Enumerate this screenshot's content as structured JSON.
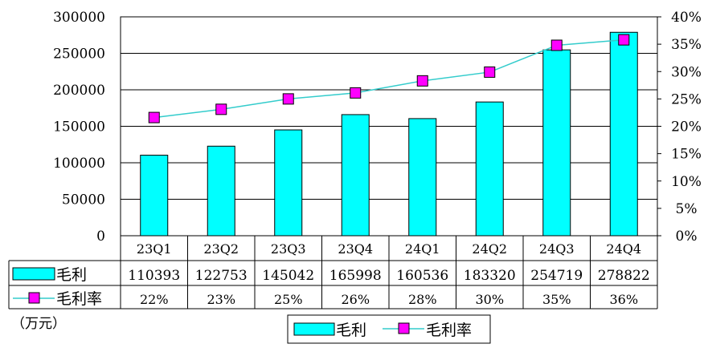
{
  "chart_data": {
    "type": "bar",
    "categories": [
      "23Q1",
      "23Q2",
      "23Q3",
      "23Q4",
      "24Q1",
      "24Q2",
      "24Q3",
      "24Q4"
    ],
    "series": [
      {
        "name": "毛利",
        "type": "bar",
        "axis": "left",
        "values": [
          110393,
          122753,
          145042,
          165998,
          160536,
          183320,
          254719,
          278822
        ],
        "color": "#00FFFF"
      },
      {
        "name": "毛利率",
        "type": "line",
        "axis": "right",
        "values": [
          21.6,
          23.1,
          25.0,
          26.1,
          28.3,
          29.9,
          34.8,
          35.8
        ],
        "table_labels": [
          "22%",
          "23%",
          "25%",
          "26%",
          "28%",
          "30%",
          "35%",
          "36%"
        ],
        "color": "#FF00FF",
        "line_color": "#33CCCC"
      }
    ],
    "ylim": [
      0,
      300000
    ],
    "y_ticks": [
      0,
      50000,
      100000,
      150000,
      200000,
      250000,
      300000
    ],
    "y2lim": [
      0,
      40
    ],
    "y2_ticks": [
      "0%",
      "5%",
      "10%",
      "15%",
      "20%",
      "25%",
      "30%",
      "35%",
      "40%"
    ],
    "unit_label": "（万元）",
    "legend": {
      "placement": "bottom",
      "items": [
        "毛利",
        "毛利率"
      ]
    },
    "grid": true,
    "data_table": true
  }
}
